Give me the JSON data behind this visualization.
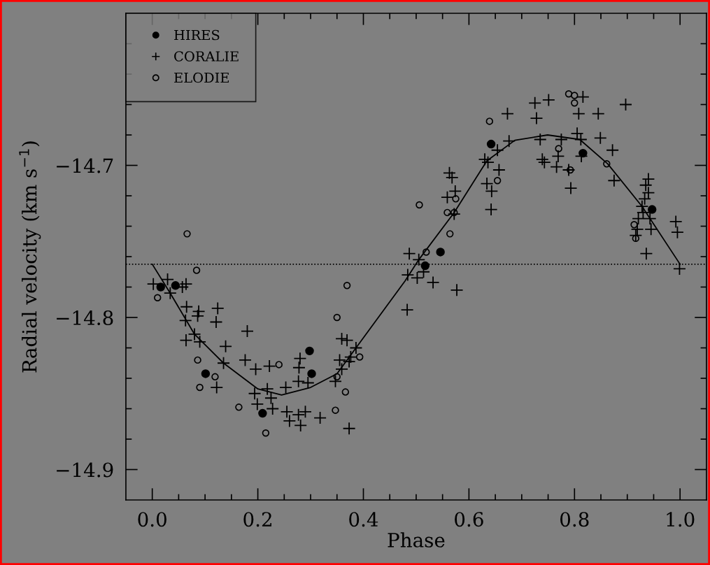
{
  "chart_data": {
    "type": "scatter",
    "xlabel": "Phase",
    "ylabel": "Radial velocity (km s$^{−1}$)",
    "xlim": [
      -0.05,
      1.05
    ],
    "ylim": [
      -14.92,
      -14.6
    ],
    "xticks": [
      {
        "value": 0.0,
        "label": "0.0"
      },
      {
        "value": 0.05,
        "label": null
      },
      {
        "value": 0.1,
        "label": null
      },
      {
        "value": 0.15,
        "label": null
      },
      {
        "value": 0.2,
        "label": "0.2"
      },
      {
        "value": 0.25,
        "label": null
      },
      {
        "value": 0.3,
        "label": null
      },
      {
        "value": 0.35,
        "label": null
      },
      {
        "value": 0.4,
        "label": "0.4"
      },
      {
        "value": 0.45,
        "label": null
      },
      {
        "value": 0.5,
        "label": null
      },
      {
        "value": 0.55,
        "label": null
      },
      {
        "value": 0.6,
        "label": "0.6"
      },
      {
        "value": 0.65,
        "label": null
      },
      {
        "value": 0.7,
        "label": null
      },
      {
        "value": 0.75,
        "label": null
      },
      {
        "value": 0.8,
        "label": "0.8"
      },
      {
        "value": 0.85,
        "label": null
      },
      {
        "value": 0.9,
        "label": null
      },
      {
        "value": 0.95,
        "label": null
      },
      {
        "value": 1.0,
        "label": "1.0"
      }
    ],
    "yticks": [
      {
        "value": -14.9,
        "label": "−14.9"
      },
      {
        "value": -14.88,
        "label": null
      },
      {
        "value": -14.86,
        "label": null
      },
      {
        "value": -14.84,
        "label": null
      },
      {
        "value": -14.82,
        "label": null
      },
      {
        "value": -14.8,
        "label": "−14.8"
      },
      {
        "value": -14.78,
        "label": null
      },
      {
        "value": -14.76,
        "label": null
      },
      {
        "value": -14.74,
        "label": null
      },
      {
        "value": -14.72,
        "label": null
      },
      {
        "value": -14.7,
        "label": "−14.7"
      },
      {
        "value": -14.68,
        "label": null
      },
      {
        "value": -14.66,
        "label": null
      },
      {
        "value": -14.64,
        "label": null
      },
      {
        "value": -14.62,
        "label": null
      }
    ],
    "legend": "top left",
    "grid": false,
    "ref_lines": [
      {
        "axis": "y",
        "value": -14.765,
        "line_style": "dotted",
        "color": "#000000"
      }
    ],
    "series": [
      {
        "name": "HIRES",
        "color": "#000000",
        "marker": "circle",
        "x": [
          0.016,
          0.044,
          0.101,
          0.209,
          0.298,
          0.302,
          0.517,
          0.546,
          0.642,
          0.816,
          0.947
        ],
        "values": [
          -14.78,
          -14.779,
          -14.837,
          -14.863,
          -14.822,
          -14.837,
          -14.766,
          -14.757,
          -14.686,
          -14.692,
          -14.729
        ]
      },
      {
        "name": "CORALIE",
        "color": "#000000",
        "marker": "cross",
        "x": [
          0.002,
          0.029,
          0.034,
          0.057,
          0.064,
          0.065,
          0.063,
          0.064,
          0.08,
          0.088,
          0.086,
          0.09,
          0.124,
          0.121,
          0.122,
          0.139,
          0.135,
          0.18,
          0.176,
          0.196,
          0.194,
          0.199,
          0.222,
          0.218,
          0.225,
          0.228,
          0.253,
          0.255,
          0.26,
          0.28,
          0.278,
          0.277,
          0.295,
          0.277,
          0.29,
          0.281,
          0.318,
          0.347,
          0.355,
          0.359,
          0.369,
          0.359,
          0.373,
          0.376,
          0.386,
          0.373,
          0.484,
          0.483,
          0.502,
          0.532,
          0.577,
          0.999,
          0.487,
          0.505,
          0.514,
          0.563,
          0.568,
          0.559,
          0.574,
          0.572,
          0.63,
          0.636,
          0.654,
          0.657,
          0.634,
          0.643,
          0.642,
          0.673,
          0.676,
          0.725,
          0.728,
          0.751,
          0.735,
          0.739,
          0.743,
          0.766,
          0.769,
          0.775,
          0.789,
          0.793,
          0.816,
          0.808,
          0.805,
          0.812,
          0.813,
          0.845,
          0.849,
          0.872,
          0.875,
          0.897,
          0.94,
          0.935,
          0.94,
          0.933,
          0.928,
          0.93,
          0.943,
          0.921,
          0.919,
          0.945,
          0.916,
          0.936,
          0.992,
          0.995
        ],
        "values": [
          -14.778,
          -14.775,
          -14.784,
          -14.78,
          -14.778,
          -14.793,
          -14.802,
          -14.815,
          -14.811,
          -14.796,
          -14.799,
          -14.816,
          -14.794,
          -14.803,
          -14.846,
          -14.819,
          -14.83,
          -14.809,
          -14.828,
          -14.834,
          -14.85,
          -14.857,
          -14.832,
          -14.847,
          -14.853,
          -14.86,
          -14.846,
          -14.862,
          -14.868,
          -14.827,
          -14.833,
          -14.842,
          -14.843,
          -14.864,
          -14.862,
          -14.871,
          -14.866,
          -14.842,
          -14.828,
          -14.814,
          -14.815,
          -14.834,
          -14.829,
          -14.826,
          -14.82,
          -14.873,
          -14.772,
          -14.795,
          -14.774,
          -14.777,
          -14.782,
          -14.768,
          -14.758,
          -14.762,
          -14.77,
          -14.705,
          -14.708,
          -14.721,
          -14.717,
          -14.732,
          -14.696,
          -14.698,
          -14.69,
          -14.703,
          -14.712,
          -14.717,
          -14.729,
          -14.666,
          -14.684,
          -14.659,
          -14.669,
          -14.657,
          -14.683,
          -14.696,
          -14.698,
          -14.701,
          -14.694,
          -14.683,
          -14.703,
          -14.715,
          -14.655,
          -14.666,
          -14.679,
          -14.683,
          -14.694,
          -14.666,
          -14.682,
          -14.69,
          -14.71,
          -14.66,
          -14.709,
          -14.713,
          -14.718,
          -14.722,
          -14.727,
          -14.731,
          -14.735,
          -14.735,
          -14.742,
          -14.742,
          -14.746,
          -14.758,
          -14.737,
          -14.744
        ]
      },
      {
        "name": "ELODIE",
        "color": "#000000",
        "marker": "circle",
        "x": [
          0.084,
          0.01,
          0.369,
          0.35,
          0.086,
          0.09,
          0.119,
          0.24,
          0.393,
          0.35,
          0.366,
          0.164,
          0.347,
          0.215,
          0.066,
          0.506,
          0.519,
          0.559,
          0.572,
          0.575,
          0.564,
          0.639,
          0.654,
          0.77,
          0.792,
          0.789,
          0.8,
          0.8,
          0.861,
          0.913,
          0.916
        ],
        "values": [
          -14.769,
          -14.787,
          -14.779,
          -14.8,
          -14.828,
          -14.846,
          -14.839,
          -14.831,
          -14.826,
          -14.839,
          -14.849,
          -14.859,
          -14.861,
          -14.876,
          -14.745,
          -14.726,
          -14.757,
          -14.731,
          -14.731,
          -14.722,
          -14.745,
          -14.671,
          -14.71,
          -14.689,
          -14.703,
          -14.653,
          -14.654,
          -14.659,
          -14.699,
          -14.739,
          -14.748
        ]
      },
      {
        "type": "line",
        "color": "#000000",
        "marker": "none",
        "line_style": "solid",
        "x": [
          0.0,
          0.034,
          0.08,
          0.135,
          0.2,
          0.245,
          0.3,
          0.35,
          0.386,
          0.479,
          0.505,
          0.572,
          0.634,
          0.687,
          0.749,
          0.81,
          0.863,
          0.928,
          1.0
        ],
        "values": [
          -14.765,
          -14.784,
          -14.811,
          -14.83,
          -14.847,
          -14.851,
          -14.846,
          -14.837,
          -14.82,
          -14.776,
          -14.762,
          -14.731,
          -14.697,
          -14.6835,
          -14.68,
          -14.683,
          -14.699,
          -14.727,
          -14.765
        ]
      }
    ]
  }
}
